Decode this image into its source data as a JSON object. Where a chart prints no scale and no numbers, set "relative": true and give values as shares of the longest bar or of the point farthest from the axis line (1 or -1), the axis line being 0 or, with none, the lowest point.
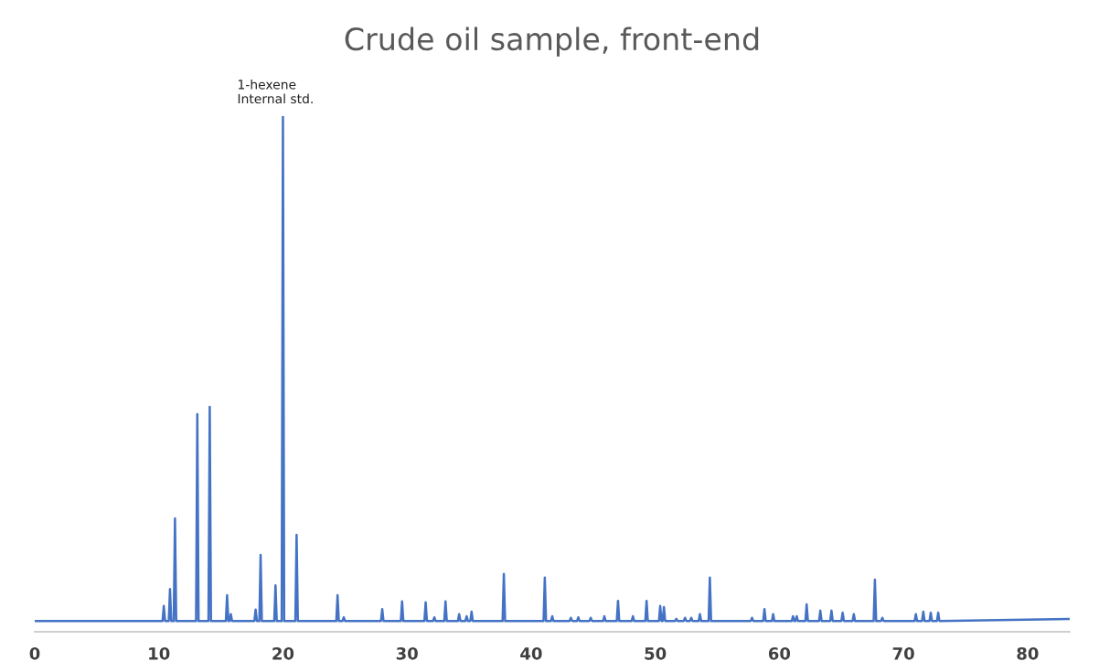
{
  "chart_data": {
    "type": "line",
    "title": "Crude oil sample, front-end",
    "relative": true,
    "grid": false,
    "legend": false,
    "xlim": [
      0,
      83.4
    ],
    "xticks": [
      0,
      10,
      20,
      30,
      40,
      50,
      60,
      70,
      80
    ],
    "x": [
      0,
      10.3,
      10.4,
      10.5,
      10.8,
      10.9,
      11.0,
      11.2,
      11.3,
      11.4,
      13.0,
      13.1,
      13.2,
      14.0,
      14.1,
      14.2,
      15.4,
      15.5,
      15.6,
      15.7,
      15.8,
      15.9,
      17.7,
      17.8,
      17.9,
      18.1,
      18.2,
      18.3,
      19.3,
      19.4,
      19.5,
      19.9,
      20.0,
      20.1,
      21.0,
      21.1,
      21.2,
      24.3,
      24.4,
      24.5,
      24.8,
      24.9,
      25.0,
      27.9,
      28.0,
      28.1,
      29.5,
      29.6,
      29.7,
      31.4,
      31.5,
      31.6,
      32.1,
      32.2,
      32.3,
      33.0,
      33.1,
      33.2,
      34.1,
      34.2,
      34.3,
      34.7,
      34.8,
      34.9,
      35.1,
      35.2,
      35.3,
      37.7,
      37.8,
      37.9,
      41.0,
      41.1,
      41.2,
      41.6,
      41.7,
      41.8,
      43.1,
      43.2,
      43.3,
      43.7,
      43.8,
      43.9,
      44.7,
      44.8,
      44.9,
      45.8,
      45.9,
      46.0,
      46.9,
      47.0,
      47.1,
      48.1,
      48.2,
      48.3,
      49.2,
      49.3,
      49.4,
      50.3,
      50.4,
      50.5,
      50.6,
      50.7,
      50.8,
      51.6,
      51.7,
      51.8,
      52.3,
      52.4,
      52.5,
      52.8,
      52.9,
      53.0,
      53.5,
      53.6,
      53.7,
      54.3,
      54.4,
      54.5,
      57.7,
      57.8,
      57.9,
      58.7,
      58.8,
      58.9,
      59.4,
      59.5,
      59.6,
      61.0,
      61.1,
      61.2,
      61.3,
      61.4,
      61.5,
      62.1,
      62.2,
      62.3,
      63.2,
      63.3,
      63.4,
      64.1,
      64.2,
      64.3,
      65.0,
      65.1,
      65.2,
      65.9,
      66.0,
      66.1,
      67.6,
      67.7,
      67.8,
      68.2,
      68.3,
      68.4,
      70.9,
      71.0,
      71.1,
      71.5,
      71.6,
      71.7,
      72.1,
      72.2,
      72.3,
      72.7,
      72.8,
      72.9,
      83.4
    ],
    "series": [
      {
        "color": "#4472c4",
        "values": [
          0.021,
          0.021,
          0.05,
          0.021,
          0.021,
          0.083,
          0.021,
          0.021,
          0.22,
          0.021,
          0.021,
          0.422,
          0.021,
          0.021,
          0.436,
          0.021,
          0.021,
          0.071,
          0.021,
          0.021,
          0.034,
          0.021,
          0.021,
          0.043,
          0.021,
          0.021,
          0.149,
          0.021,
          0.021,
          0.09,
          0.021,
          0.021,
          1,
          0.021,
          0.021,
          0.188,
          0.021,
          0.021,
          0.071,
          0.021,
          0.021,
          0.028,
          0.021,
          0.021,
          0.044,
          0.021,
          0.021,
          0.059,
          0.021,
          0.021,
          0.057,
          0.021,
          0.021,
          0.028,
          0.021,
          0.021,
          0.059,
          0.021,
          0.021,
          0.034,
          0.021,
          0.021,
          0.03,
          0.021,
          0.021,
          0.039,
          0.021,
          0.021,
          0.112,
          0.021,
          0.021,
          0.105,
          0.021,
          0.021,
          0.03,
          0.021,
          0.021,
          0.027,
          0.021,
          0.021,
          0.028,
          0.021,
          0.021,
          0.027,
          0.021,
          0.021,
          0.03,
          0.021,
          0.021,
          0.06,
          0.021,
          0.021,
          0.03,
          0.021,
          0.021,
          0.06,
          0.021,
          0.021,
          0.05,
          0.021,
          0.021,
          0.048,
          0.021,
          0.021,
          0.025,
          0.021,
          0.021,
          0.027,
          0.021,
          0.021,
          0.027,
          0.021,
          0.021,
          0.034,
          0.021,
          0.021,
          0.105,
          0.021,
          0.021,
          0.027,
          0.021,
          0.021,
          0.044,
          0.021,
          0.021,
          0.034,
          0.021,
          0.021,
          0.03,
          0.021,
          0.021,
          0.03,
          0.021,
          0.021,
          0.053,
          0.021,
          0.021,
          0.041,
          0.021,
          0.021,
          0.041,
          0.021,
          0.021,
          0.037,
          0.021,
          0.021,
          0.034,
          0.021,
          0.021,
          0.101,
          0.021,
          0.021,
          0.027,
          0.021,
          0.021,
          0.034,
          0.021,
          0.021,
          0.039,
          0.021,
          0.021,
          0.037,
          0.021,
          0.021,
          0.037,
          0.021,
          0.025
        ]
      }
    ],
    "annotations": [
      {
        "text": "1-hexene\nInternal std.",
        "x": 20,
        "y": 1
      }
    ]
  }
}
